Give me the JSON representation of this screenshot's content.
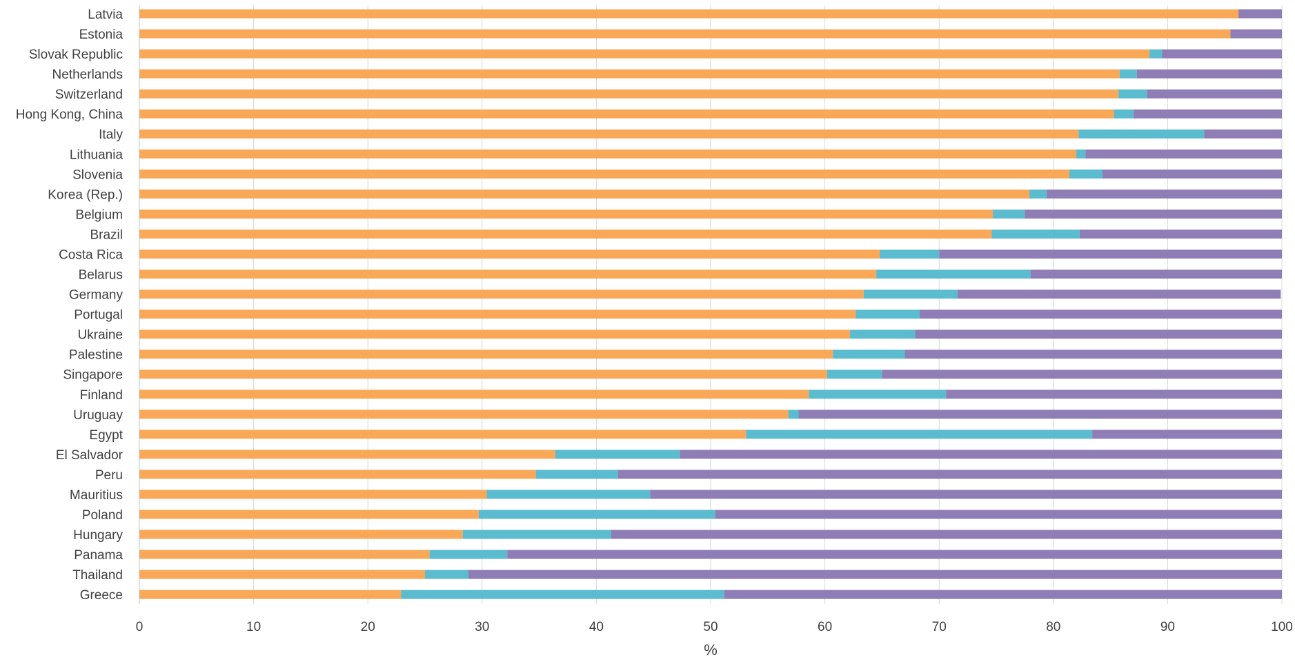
{
  "chart_data": {
    "type": "bar",
    "orientation": "horizontal",
    "stacked": true,
    "xlabel": "%",
    "xlim": [
      0,
      100
    ],
    "xticks": [
      0,
      10,
      20,
      30,
      40,
      50,
      60,
      70,
      80,
      90,
      100
    ],
    "grid": true,
    "legend": false,
    "categories": [
      "Latvia",
      "Estonia",
      "Slovak Republic",
      "Netherlands",
      "Switzerland",
      "Hong Kong, China",
      "Italy",
      "Lithuania",
      "Slovenia",
      "Korea (Rep.)",
      "Belgium",
      "Brazil",
      "Costa Rica",
      "Belarus",
      "Germany",
      "Portugal",
      "Ukraine",
      "Palestine",
      "Singapore",
      "Finland",
      "Uruguay",
      "Egypt",
      "El Salvador",
      "Peru",
      "Mauritius",
      "Poland",
      "Hungary",
      "Panama",
      "Thailand",
      "Greece"
    ],
    "series": [
      {
        "color": "#F9A857",
        "values": [
          96.2,
          95.5,
          88.4,
          85.8,
          85.7,
          85.3,
          82.2,
          82.0,
          81.4,
          77.9,
          74.7,
          74.6,
          64.8,
          64.5,
          63.4,
          62.7,
          62.2,
          60.7,
          60.2,
          58.6,
          56.8,
          53.1,
          36.4,
          34.7,
          30.4,
          29.7,
          28.3,
          25.4,
          25.0,
          22.9
        ]
      },
      {
        "color": "#5BBBCF",
        "values": [
          0.0,
          0.0,
          1.1,
          1.5,
          2.5,
          1.7,
          11.0,
          0.8,
          2.9,
          1.5,
          2.8,
          7.7,
          5.2,
          13.5,
          8.2,
          5.6,
          5.7,
          6.3,
          4.8,
          12.0,
          0.9,
          30.3,
          10.9,
          7.2,
          14.3,
          20.7,
          13.0,
          6.8,
          3.8,
          28.3
        ]
      },
      {
        "color": "#8F7EB5",
        "values": [
          3.8,
          4.5,
          10.5,
          12.7,
          11.8,
          13.0,
          6.8,
          17.2,
          15.7,
          20.6,
          22.5,
          17.7,
          30.0,
          22.0,
          28.3,
          31.7,
          32.1,
          33.0,
          35.0,
          29.4,
          42.3,
          16.6,
          52.7,
          58.1,
          55.3,
          49.6,
          58.7,
          67.8,
          71.2,
          48.8
        ]
      }
    ]
  }
}
